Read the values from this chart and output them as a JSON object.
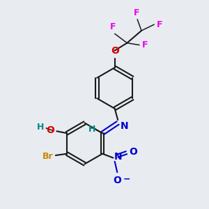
{
  "background_color": "#e8ecf0",
  "bond_color": "#1a1a1a",
  "atom_colors": {
    "F": "#ee00ee",
    "O": "#dd0000",
    "N_imine": "#0000cc",
    "N_nitro": "#0000cc",
    "Br": "#cc8800",
    "H": "#008888",
    "O_hydroxy": "#dd0000"
  },
  "figsize": [
    3.0,
    3.0
  ],
  "dpi": 100
}
